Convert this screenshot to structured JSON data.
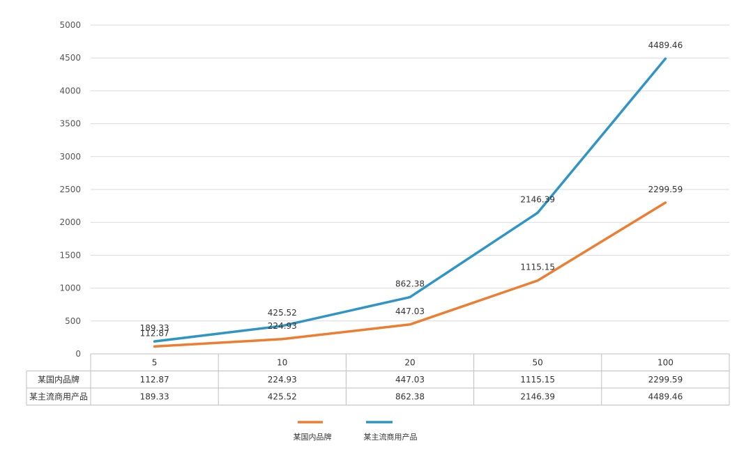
{
  "chart_data": {
    "type": "line",
    "categories": [
      "5",
      "10",
      "20",
      "50",
      "100"
    ],
    "series": [
      {
        "name": "某国内品牌",
        "color": "#ED7D31",
        "values": [
          112.87,
          224.93,
          447.03,
          1115.15,
          2299.59
        ]
      },
      {
        "name": "某主流商用产品",
        "color": "#2E95C6",
        "values": [
          189.33,
          425.52,
          862.38,
          2146.39,
          4489.46
        ]
      }
    ],
    "ylim": [
      0,
      5000
    ],
    "yticks": [
      "0",
      "500",
      "1000",
      "1500",
      "2000",
      "2500",
      "3000",
      "3500",
      "4000",
      "4500",
      "5000"
    ],
    "grid": true,
    "data_table": true,
    "legend_position": "bottom"
  }
}
